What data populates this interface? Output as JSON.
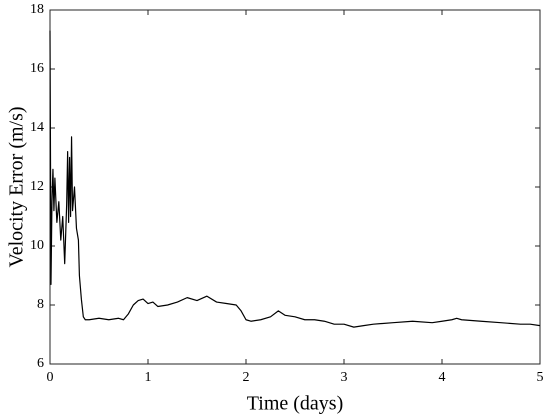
{
  "chart_data": {
    "type": "line",
    "xlabel": "Time (days)",
    "ylabel": "Velocity Error (m/s)",
    "x": [
      0,
      0.01,
      0.02,
      0.03,
      0.04,
      0.05,
      0.07,
      0.09,
      0.11,
      0.13,
      0.15,
      0.17,
      0.18,
      0.19,
      0.2,
      0.21,
      0.22,
      0.23,
      0.25,
      0.27,
      0.29,
      0.3,
      0.32,
      0.34,
      0.36,
      0.4,
      0.5,
      0.6,
      0.7,
      0.75,
      0.8,
      0.85,
      0.9,
      0.95,
      1.0,
      1.05,
      1.1,
      1.2,
      1.3,
      1.4,
      1.5,
      1.6,
      1.7,
      1.8,
      1.9,
      1.95,
      2.0,
      2.05,
      2.15,
      2.25,
      2.33,
      2.4,
      2.5,
      2.6,
      2.7,
      2.8,
      2.9,
      3.0,
      3.1,
      3.2,
      3.3,
      3.5,
      3.7,
      3.9,
      4.0,
      4.1,
      4.15,
      4.2,
      4.4,
      4.6,
      4.8,
      4.9,
      5.0
    ],
    "values": [
      17.3,
      8.7,
      11.5,
      12.6,
      11.2,
      12.3,
      10.8,
      11.5,
      10.2,
      11.0,
      9.4,
      11.4,
      13.2,
      10.8,
      13.0,
      11.0,
      13.7,
      11.2,
      12.0,
      10.6,
      10.2,
      9.0,
      8.2,
      7.6,
      7.5,
      7.5,
      7.55,
      7.5,
      7.55,
      7.5,
      7.7,
      8.0,
      8.15,
      8.2,
      8.05,
      8.1,
      7.95,
      8.0,
      8.1,
      8.25,
      8.15,
      8.3,
      8.1,
      8.05,
      8.0,
      7.8,
      7.5,
      7.45,
      7.5,
      7.6,
      7.8,
      7.65,
      7.6,
      7.5,
      7.5,
      7.45,
      7.35,
      7.35,
      7.25,
      7.3,
      7.35,
      7.4,
      7.45,
      7.4,
      7.45,
      7.5,
      7.55,
      7.5,
      7.45,
      7.4,
      7.35,
      7.35,
      7.3
    ],
    "color": "#000000",
    "xlim": [
      0,
      5
    ],
    "ylim": [
      6,
      18
    ],
    "xticks": [
      0,
      1,
      2,
      3,
      4,
      5
    ],
    "yticks": [
      6,
      8,
      10,
      12,
      14,
      16,
      18
    ],
    "grid": false
  }
}
